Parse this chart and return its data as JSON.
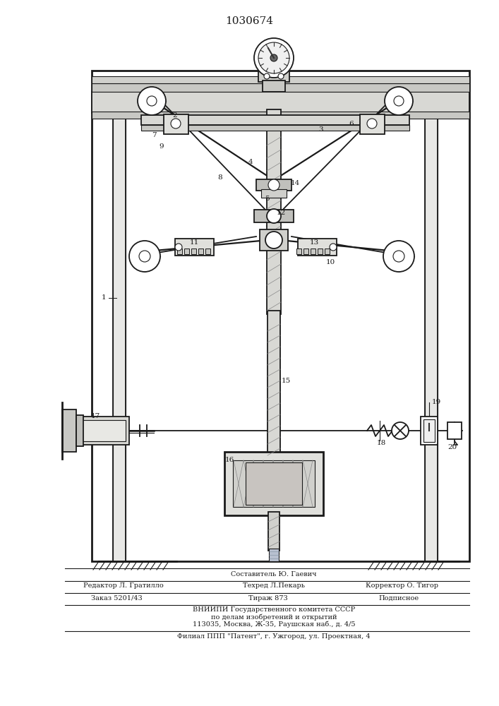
{
  "title": "1030674",
  "bg_color": "#f0ede8",
  "line_color": "#1a1a1a",
  "footer": {
    "line1_left": "Редактор Л. Гратилло",
    "line1_center": "Составитель Ю. Гаевич",
    "line1_right": "",
    "line2_left": "",
    "line2_center": "Техред Л.Пекарь",
    "line2_right": "Корректор О. Тигор",
    "line3_left": "Заказ 5201/43",
    "line3_center": "Тираж 873",
    "line3_right": "Подписное",
    "line4": "ВНИИПИ Государственного комитета СССР",
    "line5": "по делам изобретений и открытий",
    "line6": "113035, Москва, Ж-35, Раушская наб., д. 4/5",
    "line7": "Филиал ППП «Патент», г. Ужгород, ул. Проектная, 4"
  }
}
